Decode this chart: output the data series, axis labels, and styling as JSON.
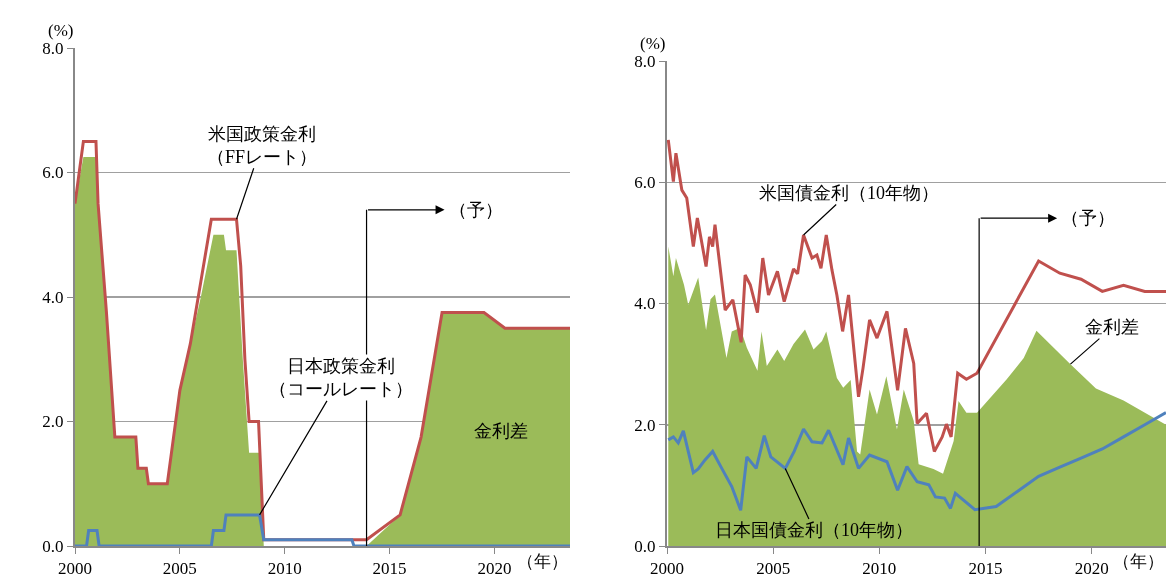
{
  "chart_data": [
    {
      "type": "line",
      "xlabel": "（年）",
      "ylabel": "(%)",
      "xlim": [
        2000,
        2023.6
      ],
      "xticks": [
        2000,
        2005,
        2010,
        2015,
        2020
      ],
      "ylim": [
        0,
        8
      ],
      "yticks": [
        {
          "value": 0,
          "label": "0.0"
        },
        {
          "value": 2,
          "label": "2.0"
        },
        {
          "value": 4,
          "label": "4.0"
        },
        {
          "value": 6,
          "label": "6.0"
        },
        {
          "value": 8,
          "label": "8.0"
        }
      ],
      "grid": "y",
      "legend": false,
      "ref_lines": [
        {
          "axis": "x",
          "value": 2013.9,
          "label": "（予）"
        }
      ],
      "series": [
        {
          "type": "area",
          "name": "金利差",
          "color": "#9bbb59",
          "x": [
            2000,
            2000.4,
            2001.0,
            2001.1,
            2001.5,
            2001.9,
            2002.9,
            2003.0,
            2003.4,
            2003.5,
            2004.4,
            2004.6,
            2005.0,
            2005.5,
            2006.0,
            2006.6,
            2007.1,
            2007.2,
            2007.7,
            2008.0,
            2008.3,
            2008.8,
            2009.0,
            2013.9,
            2015.5,
            2016.5,
            2017.5,
            2019.5,
            2020.5,
            2023.6
          ],
          "values": [
            5.5,
            6.25,
            6.25,
            5.5,
            3.7,
            1.75,
            1.75,
            1.25,
            1.25,
            1.0,
            1.0,
            1.5,
            2.5,
            3.25,
            4.0,
            5.0,
            5.0,
            4.75,
            4.75,
            3.0,
            1.5,
            1.5,
            0,
            0,
            0.5,
            1.75,
            3.75,
            3.75,
            3.5,
            3.5
          ]
        },
        {
          "type": "line",
          "name": "米国政策金利（FFレート）",
          "color": "#c0504d",
          "x": [
            2000,
            2000.2,
            2000.4,
            2001.0,
            2001.1,
            2001.5,
            2001.9,
            2002.9,
            2003.0,
            2003.4,
            2003.5,
            2004.4,
            2004.6,
            2005.0,
            2005.5,
            2006.0,
            2006.5,
            2007.7,
            2007.9,
            2008.1,
            2008.3,
            2008.75,
            2009.0,
            2013.9,
            2015.5,
            2016.5,
            2017.5,
            2019.5,
            2020.5,
            2023.6
          ],
          "values": [
            5.5,
            6.0,
            6.5,
            6.5,
            5.5,
            3.75,
            1.75,
            1.75,
            1.25,
            1.25,
            1.0,
            1.0,
            1.5,
            2.5,
            3.25,
            4.25,
            5.25,
            5.25,
            4.5,
            3.0,
            2.0,
            2.0,
            0.1,
            0.1,
            0.5,
            1.75,
            3.75,
            3.75,
            3.5,
            3.5
          ]
        },
        {
          "type": "line",
          "name": "日本政策金利（コールレート）",
          "color": "#4f81bd",
          "x": [
            2000,
            2000.55,
            2000.65,
            2001.05,
            2001.15,
            2006.5,
            2006.6,
            2007.1,
            2007.2,
            2008.8,
            2009.0,
            2013.2,
            2013.3,
            2023.6
          ],
          "values": [
            0,
            0,
            0.25,
            0.25,
            0,
            0,
            0.25,
            0.25,
            0.5,
            0.5,
            0.1,
            0.1,
            0,
            0
          ]
        }
      ]
    },
    {
      "type": "line",
      "xlabel": "（年）",
      "ylabel": "(%)",
      "xlim": [
        2000,
        2023.5
      ],
      "xticks": [
        2000,
        2005,
        2010,
        2015,
        2020
      ],
      "ylim": [
        0,
        8
      ],
      "yticks": [
        {
          "value": 0,
          "label": "0.0"
        },
        {
          "value": 2,
          "label": "2.0"
        },
        {
          "value": 4,
          "label": "4.0"
        },
        {
          "value": 6,
          "label": "6.0"
        },
        {
          "value": 8,
          "label": "8.0"
        }
      ],
      "grid": "y",
      "legend": false,
      "ref_lines": [
        {
          "axis": "x",
          "value": 2014.7,
          "label": "（予）"
        }
      ],
      "series": [
        {
          "type": "area",
          "name": "金利差",
          "color": "#9bbb59",
          "x": [
            2000.06,
            2000.3,
            2000.42,
            2000.8,
            2001.0,
            2001.47,
            2001.84,
            2002.05,
            2002.26,
            2002.8,
            2003.05,
            2003.45,
            2003.76,
            2004.26,
            2004.45,
            2004.7,
            2005.2,
            2005.52,
            2005.96,
            2006.5,
            2006.9,
            2007.3,
            2007.5,
            2008.0,
            2008.3,
            2008.65,
            2008.95,
            2009.1,
            2009.54,
            2009.89,
            2010.33,
            2010.83,
            2011.15,
            2011.62,
            2011.85,
            2012.55,
            2013.0,
            2013.5,
            2013.73,
            2014.1,
            2014.6,
            2016.0,
            2016.8,
            2017.4,
            2019.0,
            2020.2,
            2021.5,
            2023.0,
            2023.5
          ],
          "values": [
            4.94,
            4.45,
            4.75,
            4.31,
            3.98,
            4.43,
            3.56,
            4.07,
            4.15,
            3.1,
            3.54,
            3.6,
            3.27,
            2.89,
            3.54,
            2.97,
            3.24,
            3.05,
            3.33,
            3.57,
            3.24,
            3.38,
            3.54,
            2.77,
            2.61,
            2.74,
            1.56,
            1.51,
            2.58,
            2.17,
            2.8,
            1.92,
            2.58,
            2.06,
            1.35,
            1.27,
            1.19,
            1.73,
            2.39,
            2.2,
            2.2,
            2.75,
            3.1,
            3.55,
            3.0,
            2.6,
            2.4,
            2.1,
            2.0
          ]
        },
        {
          "type": "line",
          "name": "米国債金利（10年物）",
          "color": "#c0504d",
          "x": [
            2000.06,
            2000.3,
            2000.42,
            2000.7,
            2000.93,
            2001.24,
            2001.43,
            2001.84,
            2002.0,
            2002.15,
            2002.26,
            2002.74,
            2003.1,
            2003.49,
            2003.68,
            2003.92,
            2004.26,
            2004.51,
            2004.78,
            2005.2,
            2005.52,
            2005.96,
            2006.15,
            2006.43,
            2006.83,
            2007.06,
            2007.25,
            2007.5,
            2007.77,
            2008.0,
            2008.27,
            2008.55,
            2009.02,
            2009.23,
            2009.54,
            2009.89,
            2010.36,
            2010.86,
            2011.23,
            2011.62,
            2011.78,
            2012.22,
            2012.59,
            2012.96,
            2013.16,
            2013.38,
            2013.69,
            2014.1,
            2014.6,
            2017.5,
            2018.5,
            2019.5,
            2020.5,
            2021.5,
            2022.5,
            2023.5
          ],
          "values": [
            6.7,
            6.01,
            6.48,
            5.87,
            5.74,
            4.94,
            5.41,
            4.61,
            5.1,
            4.94,
            5.3,
            3.89,
            4.06,
            3.36,
            4.47,
            4.31,
            3.85,
            4.75,
            4.14,
            4.53,
            4.03,
            4.57,
            4.49,
            5.13,
            4.75,
            4.8,
            4.58,
            5.13,
            4.55,
            4.14,
            3.54,
            4.14,
            2.46,
            2.93,
            3.73,
            3.43,
            3.87,
            2.57,
            3.59,
            3.01,
            2.02,
            2.19,
            1.56,
            1.8,
            2.01,
            1.8,
            2.85,
            2.75,
            2.85,
            4.7,
            4.5,
            4.4,
            4.2,
            4.3,
            4.2,
            4.2
          ]
        },
        {
          "type": "line",
          "name": "日本国債金利（10年物）",
          "color": "#4f81bd",
          "x": [
            2000.06,
            2000.3,
            2000.53,
            2000.77,
            2001.24,
            2001.47,
            2001.79,
            2002.15,
            2002.58,
            2003.05,
            2003.47,
            2003.76,
            2004.2,
            2004.58,
            2004.89,
            2005.57,
            2005.99,
            2006.43,
            2006.83,
            2007.3,
            2007.61,
            2008.29,
            2008.55,
            2009.02,
            2009.54,
            2010.36,
            2010.86,
            2011.3,
            2011.78,
            2012.33,
            2012.64,
            2013.07,
            2013.35,
            2013.58,
            2014.5,
            2015.5,
            2016.5,
            2017.5,
            2018.5,
            2019.5,
            2020.5,
            2021.5,
            2022.5,
            2023.5
          ],
          "values": [
            1.75,
            1.8,
            1.7,
            1.9,
            1.21,
            1.27,
            1.42,
            1.56,
            1.28,
            0.98,
            0.59,
            1.47,
            1.28,
            1.82,
            1.47,
            1.28,
            1.56,
            1.93,
            1.72,
            1.7,
            1.91,
            1.34,
            1.78,
            1.28,
            1.5,
            1.39,
            0.92,
            1.31,
            1.06,
            1.01,
            0.81,
            0.79,
            0.62,
            0.87,
            0.6,
            0.65,
            0.9,
            1.15,
            1.3,
            1.45,
            1.6,
            1.8,
            2.0,
            2.2
          ]
        }
      ]
    }
  ]
}
